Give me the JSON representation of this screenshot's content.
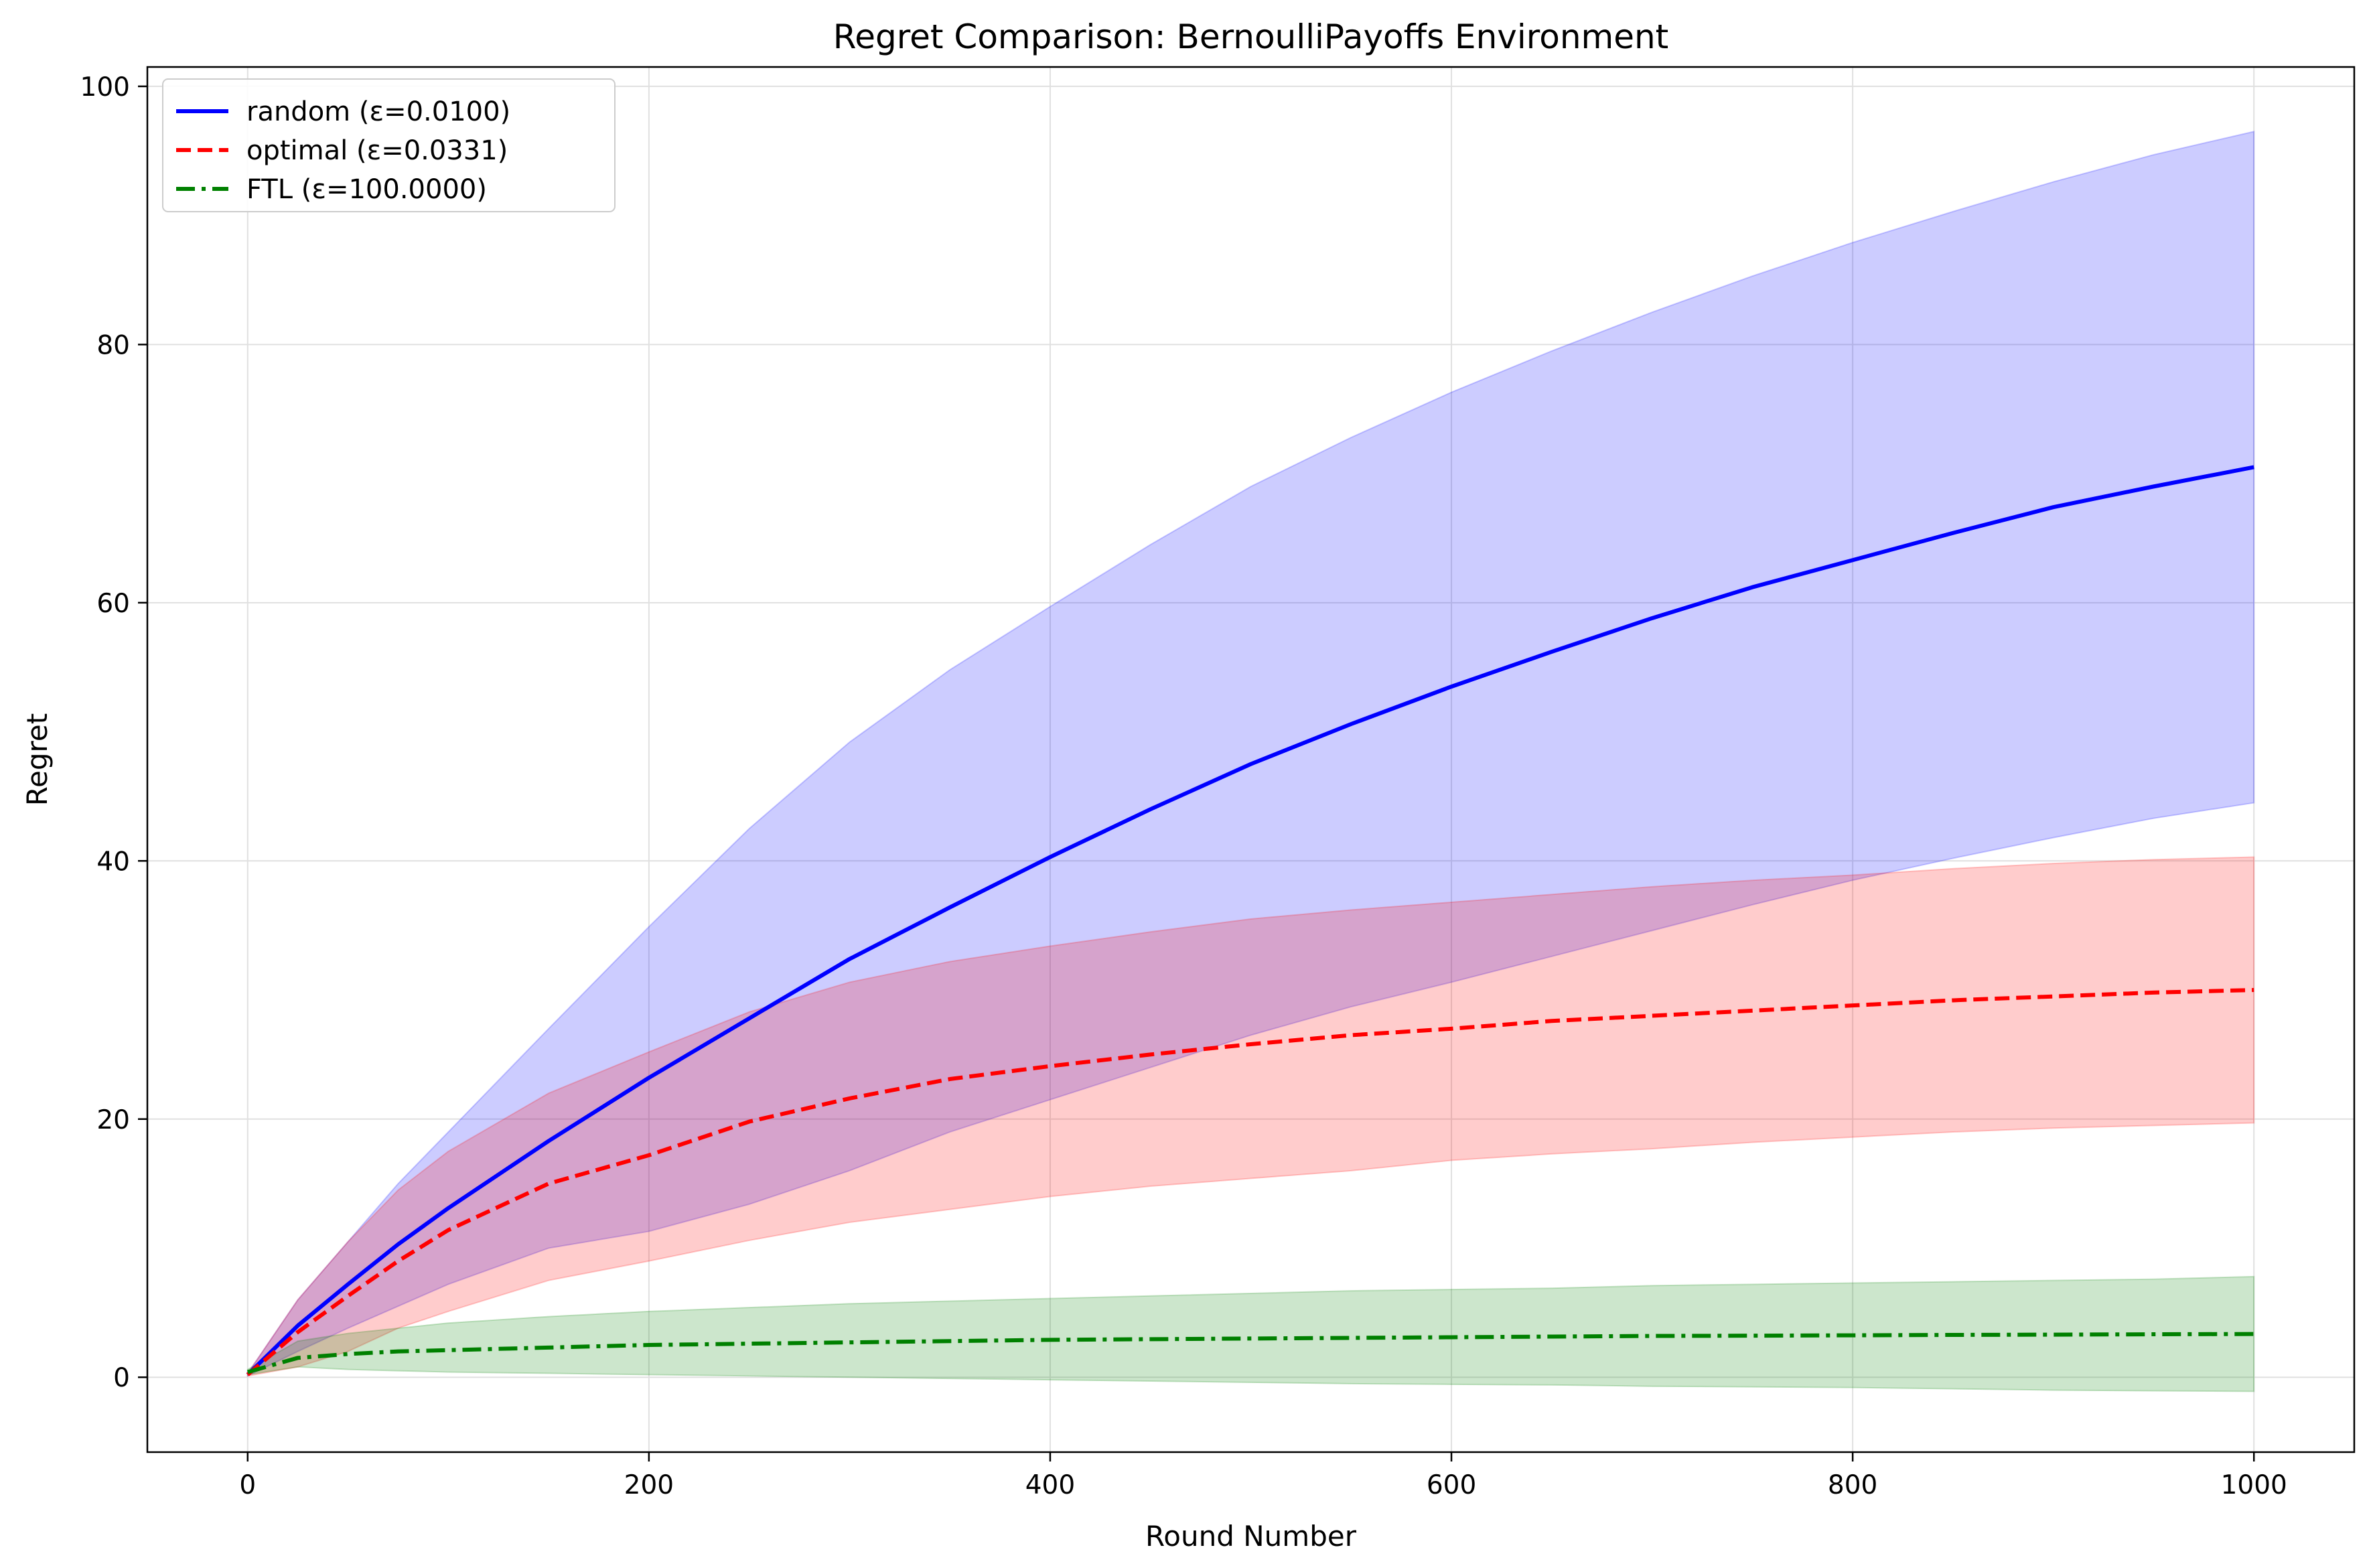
{
  "chart_data": {
    "type": "line",
    "title": "Regret Comparison: BernoulliPayoffs Environment",
    "xlabel": "Round Number",
    "ylabel": "Regret",
    "xlim": [
      -50,
      1050
    ],
    "ylim": [
      -5.8,
      101.5
    ],
    "xticks": [
      0,
      200,
      400,
      600,
      800,
      1000
    ],
    "yticks": [
      0,
      20,
      40,
      60,
      80,
      100
    ],
    "grid": true,
    "legend_position": "top-left",
    "x": [
      0,
      25,
      50,
      75,
      100,
      150,
      200,
      250,
      300,
      350,
      400,
      450,
      500,
      550,
      600,
      650,
      700,
      750,
      800,
      850,
      900,
      950,
      1000
    ],
    "series": [
      {
        "name": "random (ε=0.0100)",
        "color": "#0000ff",
        "line_style": "solid",
        "band_color": "#0000ff",
        "values": [
          0.2,
          4.0,
          7.2,
          10.3,
          13.1,
          18.3,
          23.2,
          27.8,
          32.4,
          36.4,
          40.3,
          44.0,
          47.5,
          50.6,
          53.5,
          56.2,
          58.8,
          61.2,
          63.3,
          65.4,
          67.4,
          69.0,
          70.5
        ],
        "upper": [
          0.3,
          6.0,
          10.5,
          15.0,
          19.0,
          27.0,
          34.9,
          42.5,
          49.2,
          54.8,
          59.7,
          64.5,
          69.0,
          72.8,
          76.3,
          79.5,
          82.5,
          85.3,
          87.9,
          90.3,
          92.6,
          94.7,
          96.5
        ],
        "lower": [
          0.1,
          2.0,
          3.8,
          5.5,
          7.2,
          10.0,
          11.3,
          13.4,
          16.0,
          19.0,
          21.5,
          24.0,
          26.5,
          28.7,
          30.6,
          32.6,
          34.6,
          36.6,
          38.5,
          40.2,
          41.8,
          43.3,
          44.5
        ]
      },
      {
        "name": "optimal (ε=0.0331)",
        "color": "#ff0000",
        "line_style": "dashed",
        "band_color": "#ff0000",
        "values": [
          0.2,
          3.5,
          6.3,
          9.0,
          11.4,
          15.0,
          17.2,
          19.8,
          21.6,
          23.1,
          24.1,
          25.0,
          25.8,
          26.5,
          27.0,
          27.6,
          28.0,
          28.4,
          28.8,
          29.2,
          29.5,
          29.8,
          30.0
        ],
        "upper": [
          0.3,
          6.0,
          10.5,
          14.5,
          17.5,
          22.0,
          25.2,
          28.3,
          30.6,
          32.2,
          33.4,
          34.5,
          35.5,
          36.2,
          36.8,
          37.4,
          38.0,
          38.5,
          38.9,
          39.4,
          39.8,
          40.1,
          40.3
        ],
        "lower": [
          0.1,
          0.8,
          2.0,
          3.8,
          5.1,
          7.5,
          9.0,
          10.6,
          12.0,
          13.0,
          14.0,
          14.8,
          15.4,
          16.0,
          16.8,
          17.3,
          17.7,
          18.2,
          18.6,
          19.0,
          19.3,
          19.5,
          19.7
        ]
      },
      {
        "name": "FTL (ε=100.0000)",
        "color": "#008000",
        "line_style": "dashdot",
        "band_color": "#008000",
        "values": [
          0.4,
          1.5,
          1.8,
          2.0,
          2.1,
          2.3,
          2.5,
          2.6,
          2.7,
          2.8,
          2.9,
          2.95,
          3.0,
          3.05,
          3.1,
          3.15,
          3.2,
          3.22,
          3.25,
          3.28,
          3.3,
          3.33,
          3.35
        ],
        "upper": [
          0.6,
          2.8,
          3.4,
          3.8,
          4.2,
          4.7,
          5.1,
          5.4,
          5.7,
          5.9,
          6.1,
          6.3,
          6.5,
          6.7,
          6.8,
          6.9,
          7.1,
          7.2,
          7.3,
          7.4,
          7.5,
          7.6,
          7.8
        ],
        "lower": [
          0.2,
          0.8,
          0.6,
          0.5,
          0.4,
          0.3,
          0.2,
          0.1,
          0.0,
          -0.1,
          -0.2,
          -0.3,
          -0.4,
          -0.5,
          -0.55,
          -0.6,
          -0.7,
          -0.75,
          -0.8,
          -0.9,
          -1.0,
          -1.05,
          -1.1
        ]
      }
    ]
  }
}
